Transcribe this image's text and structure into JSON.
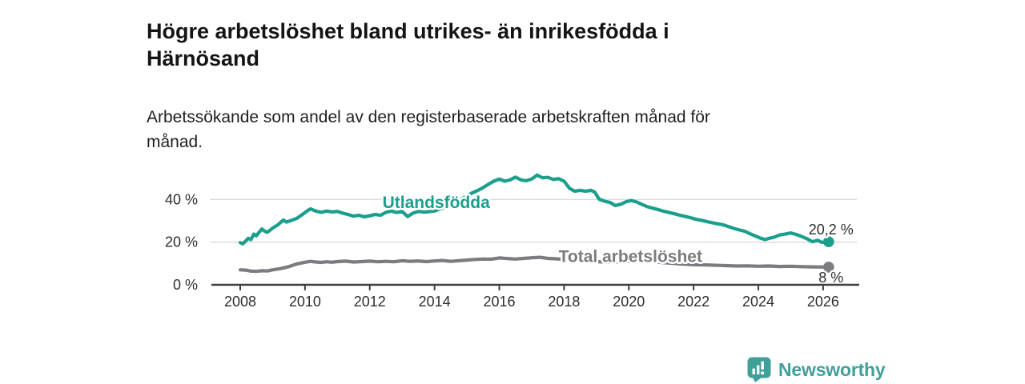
{
  "header": {
    "title": "Högre arbetslöshet bland utrikes- än inrikesfödda i\nHärnösand",
    "subtitle": "Arbetssökande som andel av den registerbaserade arbetskraften månad för\nmånad."
  },
  "footer": {
    "brand": "Newsworthy",
    "brand_color": "#3fa099",
    "logo_icon": "speech-bubble-bar-chart-icon"
  },
  "chart_data": {
    "type": "line",
    "title": "Högre arbetslöshet bland utrikes- än inrikesfödda i Härnösand",
    "subtitle": "Arbetssökande som andel av den registerbaserade arbetskraften månad för månad.",
    "grid": "horizontal",
    "legend_position": "inline-labels",
    "colors": {
      "accent_teal": "#1a9e8d",
      "neutral_gray": "#7b7b80",
      "axis": "#3f3f42",
      "gridline": "#d9d9da",
      "tick_text": "#2e2e31"
    },
    "x_axis": {
      "ticks": [
        2008,
        2010,
        2012,
        2014,
        2016,
        2018,
        2020,
        2022,
        2024,
        2026
      ],
      "range": [
        2007.1,
        2027.1
      ]
    },
    "y_axis": {
      "ticks": [
        {
          "v": 0,
          "label": "0 %"
        },
        {
          "v": 20,
          "label": "20 %"
        },
        {
          "v": 40,
          "label": "40 %"
        }
      ],
      "range": [
        0,
        55
      ]
    },
    "series": [
      {
        "id": "utlandsfodda",
        "name": "Utlandsfödda",
        "color": "#1a9e8d",
        "label_pos": [
          2014.05,
          38.6
        ],
        "end_label": "20,2 %",
        "points": [
          [
            2008.0,
            19.8
          ],
          [
            2008.08,
            19.2
          ],
          [
            2008.17,
            20.6
          ],
          [
            2008.25,
            21.8
          ],
          [
            2008.33,
            21.2
          ],
          [
            2008.42,
            23.8
          ],
          [
            2008.5,
            23.0
          ],
          [
            2008.58,
            24.6
          ],
          [
            2008.67,
            26.2
          ],
          [
            2008.75,
            25.2
          ],
          [
            2008.83,
            24.6
          ],
          [
            2008.92,
            25.6
          ],
          [
            2009.0,
            26.6
          ],
          [
            2009.17,
            28.2
          ],
          [
            2009.33,
            30.4
          ],
          [
            2009.42,
            29.4
          ],
          [
            2009.58,
            30.2
          ],
          [
            2009.75,
            31.2
          ],
          [
            2009.92,
            33.0
          ],
          [
            2010.08,
            34.8
          ],
          [
            2010.17,
            35.6
          ],
          [
            2010.33,
            34.6
          ],
          [
            2010.5,
            34.0
          ],
          [
            2010.67,
            34.6
          ],
          [
            2010.83,
            34.2
          ],
          [
            2011.0,
            34.4
          ],
          [
            2011.17,
            33.6
          ],
          [
            2011.33,
            33.0
          ],
          [
            2011.5,
            32.2
          ],
          [
            2011.67,
            32.6
          ],
          [
            2011.83,
            31.9
          ],
          [
            2012.0,
            32.4
          ],
          [
            2012.17,
            33.0
          ],
          [
            2012.33,
            32.6
          ],
          [
            2012.5,
            34.0
          ],
          [
            2012.67,
            34.6
          ],
          [
            2012.83,
            33.9
          ],
          [
            2013.0,
            34.4
          ],
          [
            2013.17,
            32.0
          ],
          [
            2013.33,
            33.6
          ],
          [
            2013.5,
            34.4
          ],
          [
            2013.67,
            34.1
          ],
          [
            2013.83,
            34.3
          ],
          [
            2014.0,
            34.6
          ],
          [
            2014.17,
            35.6
          ],
          [
            2014.33,
            36.2
          ],
          [
            2014.5,
            37.2
          ],
          [
            2014.67,
            38.6
          ],
          [
            2014.83,
            40.2
          ],
          [
            2015.0,
            41.6
          ],
          [
            2015.17,
            43.2
          ],
          [
            2015.33,
            44.2
          ],
          [
            2015.5,
            45.6
          ],
          [
            2015.67,
            47.2
          ],
          [
            2015.83,
            48.6
          ],
          [
            2016.0,
            49.6
          ],
          [
            2016.17,
            48.6
          ],
          [
            2016.33,
            49.2
          ],
          [
            2016.5,
            50.5
          ],
          [
            2016.67,
            49.2
          ],
          [
            2016.83,
            48.8
          ],
          [
            2017.0,
            49.6
          ],
          [
            2017.17,
            51.5
          ],
          [
            2017.33,
            50.2
          ],
          [
            2017.5,
            50.4
          ],
          [
            2017.67,
            49.4
          ],
          [
            2017.83,
            49.8
          ],
          [
            2018.0,
            48.6
          ],
          [
            2018.17,
            45.2
          ],
          [
            2018.33,
            43.9
          ],
          [
            2018.5,
            44.3
          ],
          [
            2018.67,
            43.9
          ],
          [
            2018.83,
            44.3
          ],
          [
            2018.95,
            43.4
          ],
          [
            2019.08,
            40.2
          ],
          [
            2019.25,
            39.2
          ],
          [
            2019.42,
            38.6
          ],
          [
            2019.58,
            37.2
          ],
          [
            2019.75,
            37.8
          ],
          [
            2019.92,
            39.0
          ],
          [
            2020.08,
            39.5
          ],
          [
            2020.25,
            38.8
          ],
          [
            2020.42,
            37.6
          ],
          [
            2020.58,
            36.6
          ],
          [
            2020.75,
            35.9
          ],
          [
            2020.92,
            35.2
          ],
          [
            2021.08,
            34.5
          ],
          [
            2021.25,
            33.9
          ],
          [
            2021.42,
            33.3
          ],
          [
            2021.58,
            32.6
          ],
          [
            2021.75,
            32.0
          ],
          [
            2021.92,
            31.4
          ],
          [
            2022.08,
            30.7
          ],
          [
            2022.25,
            30.2
          ],
          [
            2022.42,
            29.6
          ],
          [
            2022.58,
            29.1
          ],
          [
            2022.75,
            28.6
          ],
          [
            2022.92,
            28.1
          ],
          [
            2023.08,
            27.3
          ],
          [
            2023.25,
            26.4
          ],
          [
            2023.42,
            25.7
          ],
          [
            2023.58,
            25.1
          ],
          [
            2023.75,
            23.9
          ],
          [
            2023.92,
            22.8
          ],
          [
            2024.08,
            21.8
          ],
          [
            2024.21,
            21.2
          ],
          [
            2024.33,
            21.8
          ],
          [
            2024.5,
            22.4
          ],
          [
            2024.67,
            23.4
          ],
          [
            2024.83,
            23.8
          ],
          [
            2025.0,
            24.3
          ],
          [
            2025.17,
            23.6
          ],
          [
            2025.33,
            22.7
          ],
          [
            2025.5,
            21.6
          ],
          [
            2025.67,
            20.2
          ],
          [
            2025.83,
            20.9
          ],
          [
            2025.96,
            19.9
          ],
          [
            2026.17,
            20.2
          ]
        ]
      },
      {
        "id": "total-arbetsloshet",
        "name": "Total arbetslöshet",
        "color": "#7b7b80",
        "label_pos": [
          2020.05,
          13.4
        ],
        "end_label": "8 %",
        "points": [
          [
            2008.0,
            7.0
          ],
          [
            2008.17,
            6.9
          ],
          [
            2008.33,
            6.4
          ],
          [
            2008.5,
            6.3
          ],
          [
            2008.67,
            6.6
          ],
          [
            2008.83,
            6.5
          ],
          [
            2009.0,
            7.0
          ],
          [
            2009.25,
            7.6
          ],
          [
            2009.5,
            8.5
          ],
          [
            2009.75,
            9.8
          ],
          [
            2010.0,
            10.6
          ],
          [
            2010.17,
            11.0
          ],
          [
            2010.33,
            10.7
          ],
          [
            2010.5,
            10.5
          ],
          [
            2010.67,
            10.8
          ],
          [
            2010.83,
            10.6
          ],
          [
            2011.0,
            10.9
          ],
          [
            2011.25,
            11.1
          ],
          [
            2011.5,
            10.7
          ],
          [
            2011.75,
            10.9
          ],
          [
            2012.0,
            11.1
          ],
          [
            2012.25,
            10.8
          ],
          [
            2012.5,
            11.0
          ],
          [
            2012.75,
            10.8
          ],
          [
            2013.0,
            11.3
          ],
          [
            2013.25,
            11.0
          ],
          [
            2013.5,
            11.2
          ],
          [
            2013.75,
            10.9
          ],
          [
            2014.0,
            11.2
          ],
          [
            2014.25,
            11.4
          ],
          [
            2014.5,
            11.0
          ],
          [
            2014.75,
            11.3
          ],
          [
            2015.0,
            11.6
          ],
          [
            2015.25,
            11.9
          ],
          [
            2015.5,
            12.1
          ],
          [
            2015.75,
            12.0
          ],
          [
            2016.0,
            12.6
          ],
          [
            2016.25,
            12.3
          ],
          [
            2016.5,
            12.1
          ],
          [
            2016.75,
            12.4
          ],
          [
            2017.0,
            12.7
          ],
          [
            2017.25,
            12.9
          ],
          [
            2017.5,
            12.4
          ],
          [
            2017.75,
            12.2
          ],
          [
            2018.0,
            11.9
          ],
          [
            2018.5,
            11.4
          ],
          [
            2019.0,
            10.9
          ],
          [
            2019.5,
            10.6
          ],
          [
            2020.0,
            11.0
          ],
          [
            2020.33,
            11.4
          ],
          [
            2020.67,
            11.0
          ],
          [
            2021.0,
            10.5
          ],
          [
            2021.5,
            9.9
          ],
          [
            2022.0,
            9.4
          ],
          [
            2022.42,
            9.3
          ],
          [
            2022.75,
            9.1
          ],
          [
            2023.0,
            9.0
          ],
          [
            2023.33,
            8.8
          ],
          [
            2023.67,
            8.9
          ],
          [
            2024.0,
            8.7
          ],
          [
            2024.33,
            8.8
          ],
          [
            2024.67,
            8.6
          ],
          [
            2025.0,
            8.7
          ],
          [
            2025.33,
            8.5
          ],
          [
            2025.67,
            8.4
          ],
          [
            2026.17,
            8.3
          ]
        ]
      }
    ]
  }
}
